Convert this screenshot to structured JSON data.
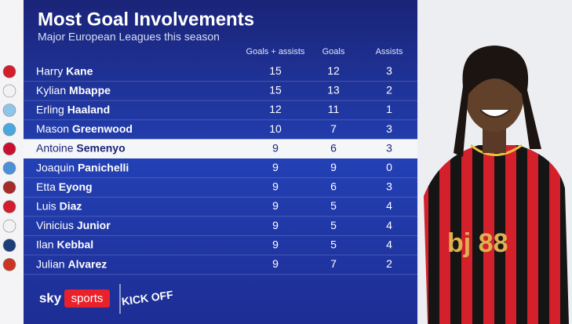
{
  "header": {
    "title": "Most Goal Involvements",
    "subtitle": "Major European Leagues this season"
  },
  "table": {
    "columns": [
      "Goals + assists",
      "Goals",
      "Assists"
    ],
    "rows": [
      [
        "Harry",
        "Kane",
        "15",
        "12",
        "3"
      ],
      [
        "Kylian",
        "Mbappe",
        "15",
        "13",
        "2"
      ],
      [
        "Erling",
        "Haaland",
        "12",
        "11",
        "1"
      ],
      [
        "Mason",
        "Greenwood",
        "10",
        "7",
        "3"
      ],
      [
        "Antoine",
        "Semenyo",
        "9",
        "6",
        "3"
      ],
      [
        "Joaquin",
        "Panichelli",
        "9",
        "9",
        "0"
      ],
      [
        "Etta",
        "Eyong",
        "9",
        "6",
        "3"
      ],
      [
        "Luis",
        "Diaz",
        "9",
        "5",
        "4"
      ],
      [
        "Vinicius",
        "Junior",
        "9",
        "5",
        "4"
      ],
      [
        "Ilan",
        "Kebbal",
        "9",
        "5",
        "4"
      ],
      [
        "Julian",
        "Alvarez",
        "9",
        "7",
        "2"
      ]
    ]
  },
  "footer": {
    "brand": "sky",
    "channel": "sports",
    "partner": "KICK OFF"
  }
}
